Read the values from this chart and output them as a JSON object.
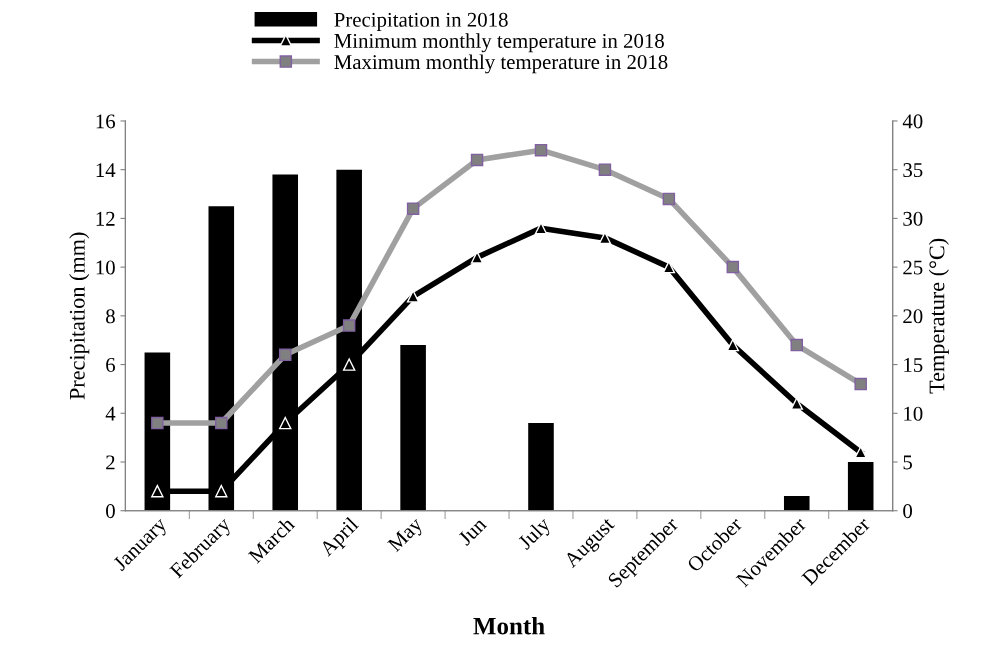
{
  "chart_data": {
    "type": "bar",
    "xlabel": "Month",
    "ylabel": "Precipitation (mm)",
    "y2label": "Temperature (°C)",
    "categories": [
      "January",
      "February",
      "March",
      "April",
      "May",
      "Jun",
      "July",
      "August",
      "September",
      "October",
      "November",
      "December"
    ],
    "series": [
      {
        "name": "Precipitation in 2018",
        "color": "#000000",
        "values": [
          6.5,
          12.5,
          13.8,
          14.0,
          6.8,
          0,
          3.6,
          0,
          0,
          0,
          0.6,
          2.0
        ]
      },
      {
        "name": "Minimum monthly temperature in 2018",
        "type": "line",
        "axis": "y2",
        "color": "#000000",
        "marker": "triangle",
        "values": [
          2,
          2,
          9,
          15,
          22,
          26,
          29,
          28,
          25,
          17,
          11,
          6
        ]
      },
      {
        "name": "Maximum monthly temperature in 2018",
        "type": "line",
        "axis": "y2",
        "color": "#a0a0a0",
        "marker": "square",
        "values": [
          9,
          9,
          16,
          19,
          31,
          36,
          37,
          35,
          32,
          25,
          17,
          13
        ]
      }
    ],
    "ylim": [
      0,
      16
    ],
    "yticks": [
      0,
      2,
      4,
      6,
      8,
      10,
      12,
      14,
      16
    ],
    "y2lim": [
      0,
      40
    ],
    "y2ticks": [
      0,
      5,
      10,
      15,
      20,
      25,
      30,
      35,
      40
    ],
    "grid": false,
    "legend": "top"
  }
}
